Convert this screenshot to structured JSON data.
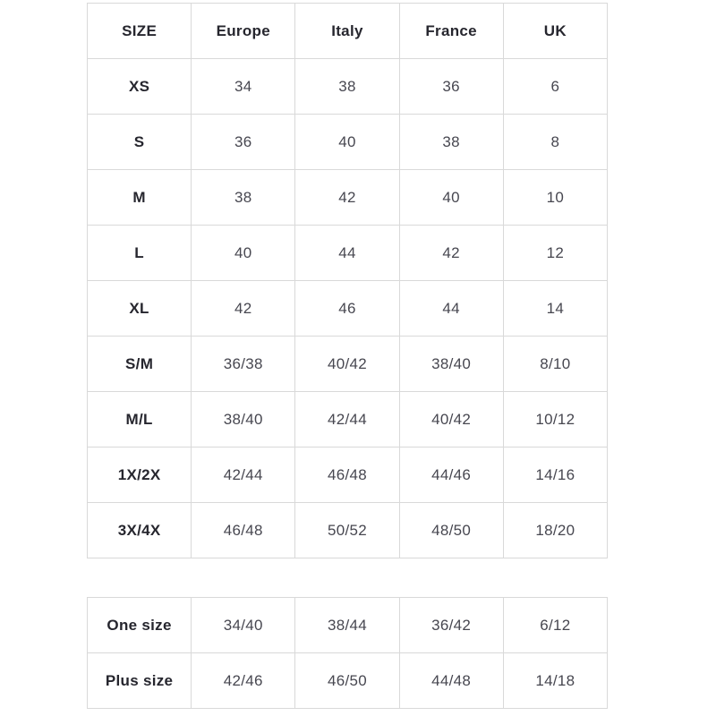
{
  "size_chart": {
    "headers": [
      "SIZE",
      "Europe",
      "Italy",
      "France",
      "UK"
    ],
    "main_rows": [
      [
        "XS",
        "34",
        "38",
        "36",
        "6"
      ],
      [
        "S",
        "36",
        "40",
        "38",
        "8"
      ],
      [
        "M",
        "38",
        "42",
        "40",
        "10"
      ],
      [
        "L",
        "40",
        "44",
        "42",
        "12"
      ],
      [
        "XL",
        "42",
        "46",
        "44",
        "14"
      ],
      [
        "S/M",
        "36/38",
        "40/42",
        "38/40",
        "8/10"
      ],
      [
        "M/L",
        "38/40",
        "42/44",
        "40/42",
        "10/12"
      ],
      [
        "1X/2X",
        "42/44",
        "46/48",
        "44/46",
        "14/16"
      ],
      [
        "3X/4X",
        "46/48",
        "50/52",
        "48/50",
        "18/20"
      ]
    ],
    "extra_rows": [
      [
        "One size",
        "34/40",
        "38/44",
        "36/42",
        "6/12"
      ],
      [
        "Plus size",
        "42/46",
        "46/50",
        "44/48",
        "14/18"
      ]
    ],
    "colors": {
      "background": "#ffffff",
      "border": "#d9d9d9",
      "header_text": "#26262e",
      "cell_text": "#474750"
    }
  }
}
